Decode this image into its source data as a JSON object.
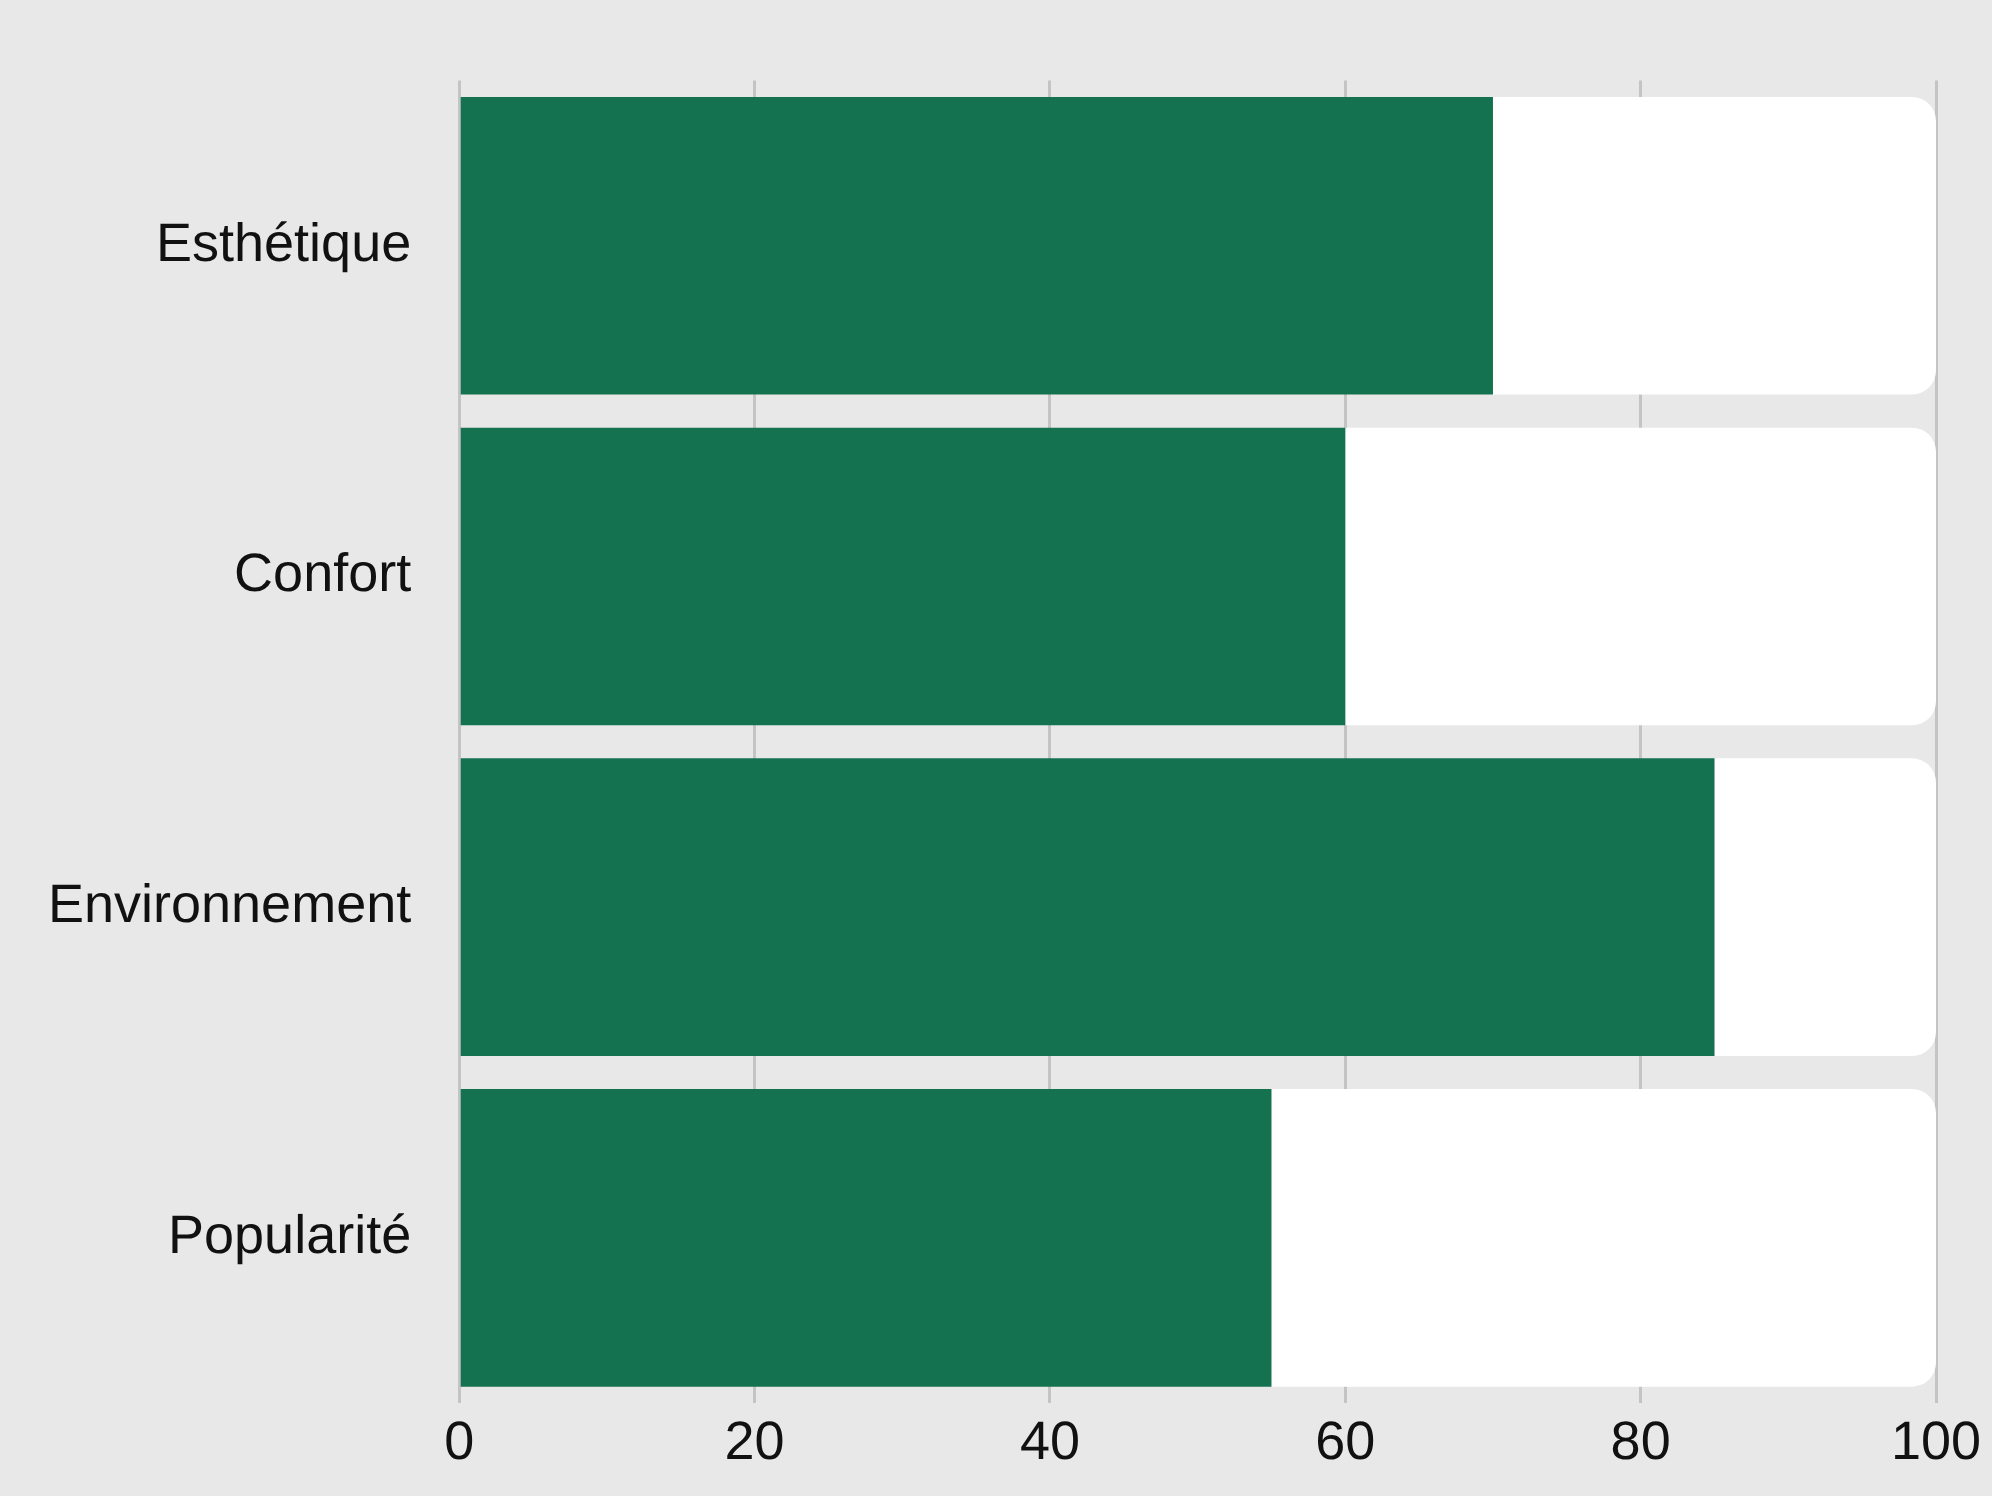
{
  "chart_data": {
    "type": "bar",
    "orientation": "horizontal",
    "stacked": true,
    "categories": [
      "Esthétique",
      "Confort",
      "Environnement",
      "Popularité"
    ],
    "series": [
      {
        "color": "#157250",
        "values": [
          70,
          60,
          85,
          55
        ]
      },
      {
        "color": "#ffffff",
        "values": [
          30,
          40,
          15,
          45
        ]
      }
    ],
    "xlim": [
      0,
      100
    ],
    "xticks": [
      0,
      20,
      40,
      60,
      80,
      100
    ],
    "grid": "x",
    "legend": false
  }
}
